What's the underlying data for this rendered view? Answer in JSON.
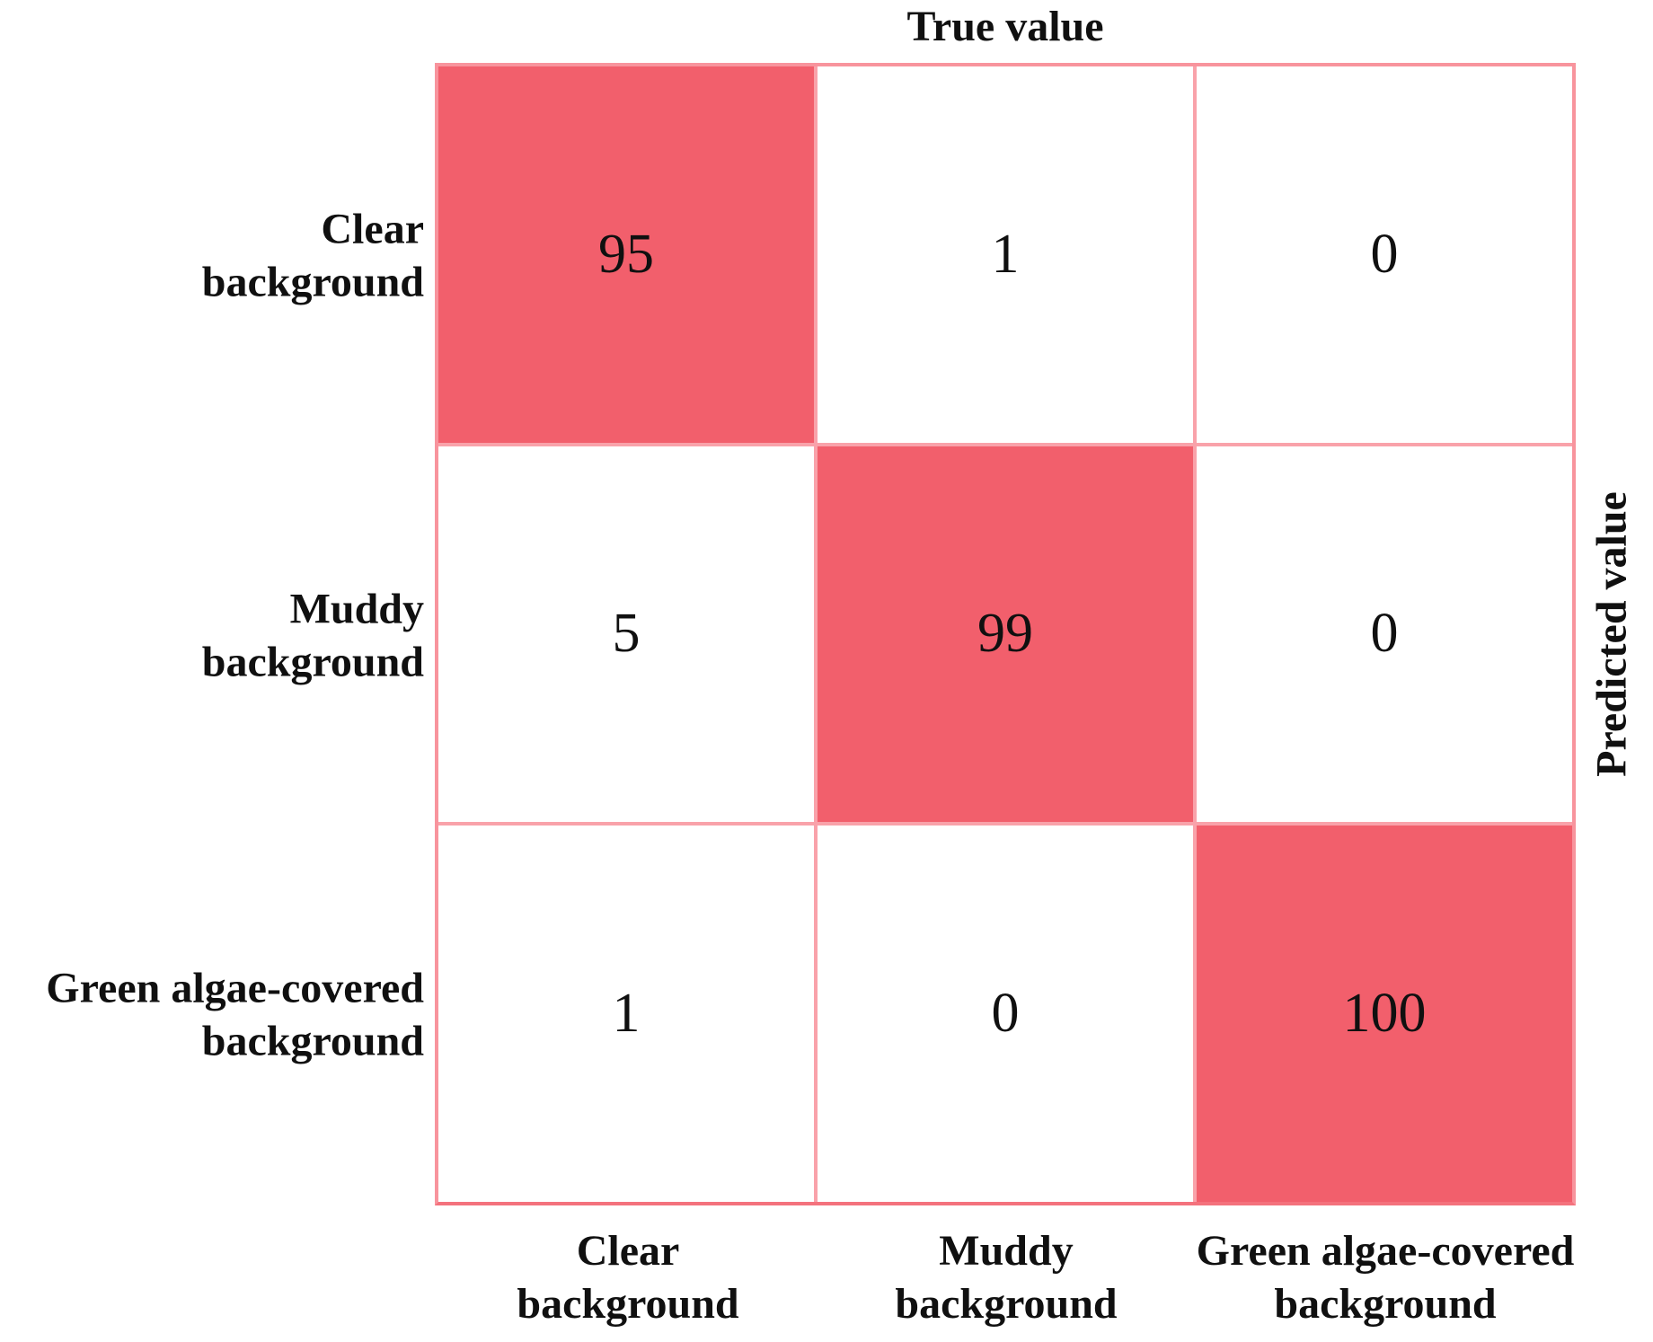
{
  "figure_type": "confusion-matrix",
  "colors": {
    "cell_highlight": "#f25f6c",
    "grid_line": "#f9a2aa",
    "outer_border": "#f8949d",
    "outer_border_bottom": "#f4727d",
    "text": "#101010"
  },
  "chart_data": {
    "type": "heatmap",
    "col_axis": {
      "label": "True value",
      "label_position": "top",
      "tick_position": "bottom",
      "categories": [
        "Clear\nbackground",
        "Muddy\nbackground",
        "Green algae-covered\nbackground"
      ]
    },
    "row_axis": {
      "label": "Predicted value",
      "label_position": "right",
      "tick_position": "left",
      "categories": [
        "Clear\nbackground",
        "Muddy\nbackground",
        "Green algae-covered\nbackground"
      ]
    },
    "matrix": [
      [
        95,
        1,
        0
      ],
      [
        5,
        99,
        0
      ],
      [
        1,
        0,
        100
      ]
    ],
    "highlight": "diagonal-cells-filled",
    "grid": true,
    "legend": false
  }
}
